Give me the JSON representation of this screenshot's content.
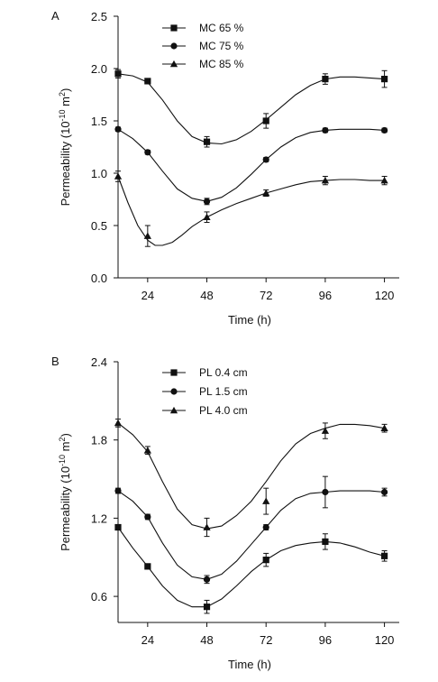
{
  "chart_data": [
    {
      "panel_label": "A",
      "type": "line",
      "xlabel": "Time (h)",
      "ylabel_parts": [
        "Permeability (10",
        "-10",
        " m",
        "2",
        ")"
      ],
      "xlim": [
        12,
        126
      ],
      "ylim": [
        0,
        2.5
      ],
      "x_ticks": [
        24,
        48,
        72,
        96,
        120
      ],
      "y_ticks": [
        0.0,
        0.5,
        1.0,
        1.5,
        2.0,
        2.5
      ],
      "y_tick_labels": [
        "0.0",
        "0.5",
        "1.0",
        "1.5",
        "2.0",
        "2.5"
      ],
      "legend_position": "top-center",
      "series": [
        {
          "name": "MC 65 %",
          "marker": "square",
          "x": [
            12,
            24,
            48,
            72,
            96,
            120
          ],
          "y": [
            1.95,
            1.88,
            1.3,
            1.5,
            1.9,
            1.9
          ],
          "err": [
            0.04,
            0.02,
            0.05,
            0.07,
            0.05,
            0.08
          ],
          "curve_x": [
            12,
            18,
            24,
            30,
            36,
            42,
            48,
            54,
            60,
            66,
            72,
            78,
            84,
            90,
            96,
            102,
            108,
            114,
            120
          ],
          "curve_y": [
            1.95,
            1.93,
            1.87,
            1.7,
            1.5,
            1.35,
            1.29,
            1.28,
            1.32,
            1.4,
            1.51,
            1.63,
            1.75,
            1.84,
            1.9,
            1.92,
            1.92,
            1.91,
            1.9
          ]
        },
        {
          "name": "MC 75 %",
          "marker": "circle",
          "x": [
            12,
            24,
            48,
            72,
            96,
            120
          ],
          "y": [
            1.42,
            1.2,
            0.73,
            1.13,
            1.41,
            1.41
          ],
          "err": [
            0.02,
            0.02,
            0.03,
            0.02,
            0.02,
            0.02
          ],
          "curve_x": [
            12,
            18,
            24,
            30,
            36,
            42,
            48,
            54,
            60,
            66,
            72,
            78,
            84,
            90,
            96,
            102,
            108,
            114,
            120
          ],
          "curve_y": [
            1.42,
            1.33,
            1.2,
            1.02,
            0.85,
            0.76,
            0.73,
            0.77,
            0.86,
            0.99,
            1.13,
            1.25,
            1.34,
            1.39,
            1.41,
            1.42,
            1.42,
            1.42,
            1.41
          ]
        },
        {
          "name": "MC 85 %",
          "marker": "triangle",
          "x": [
            12,
            24,
            48,
            72,
            96,
            120
          ],
          "y": [
            0.97,
            0.4,
            0.58,
            0.81,
            0.93,
            0.93
          ],
          "err": [
            0.05,
            0.1,
            0.05,
            0.03,
            0.04,
            0.04
          ],
          "curve_x": [
            12,
            16,
            20,
            24,
            27,
            30,
            34,
            38,
            42,
            48,
            54,
            60,
            66,
            72,
            78,
            84,
            90,
            96,
            102,
            108,
            114,
            120
          ],
          "curve_y": [
            0.97,
            0.72,
            0.5,
            0.36,
            0.31,
            0.31,
            0.34,
            0.41,
            0.49,
            0.58,
            0.65,
            0.71,
            0.76,
            0.81,
            0.85,
            0.89,
            0.92,
            0.93,
            0.94,
            0.94,
            0.93,
            0.93
          ]
        }
      ]
    },
    {
      "panel_label": "B",
      "type": "line",
      "xlabel": "Time (h)",
      "ylabel_parts": [
        "Permeability (10",
        "-10",
        " m",
        "2",
        ")"
      ],
      "xlim": [
        12,
        126
      ],
      "ylim": [
        0.4,
        2.4
      ],
      "x_ticks": [
        24,
        48,
        72,
        96,
        120
      ],
      "y_ticks": [
        0.6,
        1.2,
        1.8,
        2.4
      ],
      "y_tick_labels": [
        "0.6",
        "1.2",
        "1.8",
        "2.4"
      ],
      "legend_position": "top-center",
      "series": [
        {
          "name": "PL 0.4 cm",
          "marker": "square",
          "x": [
            12,
            24,
            48,
            72,
            96,
            120
          ],
          "y": [
            1.13,
            0.83,
            0.52,
            0.88,
            1.02,
            0.91
          ],
          "err": [
            0.02,
            0.02,
            0.05,
            0.05,
            0.06,
            0.04
          ],
          "curve_x": [
            12,
            18,
            24,
            30,
            36,
            42,
            48,
            54,
            60,
            66,
            72,
            78,
            84,
            90,
            96,
            102,
            108,
            114,
            120
          ],
          "curve_y": [
            1.13,
            0.97,
            0.83,
            0.68,
            0.57,
            0.52,
            0.52,
            0.58,
            0.68,
            0.79,
            0.88,
            0.95,
            0.99,
            1.01,
            1.02,
            1.01,
            0.98,
            0.94,
            0.91
          ]
        },
        {
          "name": "PL 1.5 cm",
          "marker": "circle",
          "x": [
            12,
            24,
            48,
            72,
            96,
            120
          ],
          "y": [
            1.41,
            1.21,
            0.73,
            1.13,
            1.4,
            1.4
          ],
          "err": [
            0.02,
            0.02,
            0.03,
            0.02,
            0.12,
            0.03
          ],
          "curve_x": [
            12,
            18,
            24,
            30,
            36,
            42,
            48,
            54,
            60,
            66,
            72,
            78,
            84,
            90,
            96,
            102,
            108,
            114,
            120
          ],
          "curve_y": [
            1.41,
            1.33,
            1.21,
            1.01,
            0.84,
            0.75,
            0.73,
            0.77,
            0.87,
            1.0,
            1.13,
            1.26,
            1.35,
            1.39,
            1.4,
            1.41,
            1.41,
            1.41,
            1.4
          ]
        },
        {
          "name": "PL 4.0 cm",
          "marker": "triangle",
          "x": [
            12,
            24,
            48,
            72,
            96,
            120
          ],
          "y": [
            1.93,
            1.72,
            1.13,
            1.33,
            1.87,
            1.89
          ],
          "err": [
            0.03,
            0.03,
            0.07,
            0.1,
            0.06,
            0.03
          ],
          "curve_x": [
            12,
            18,
            24,
            30,
            36,
            42,
            48,
            54,
            60,
            66,
            72,
            78,
            84,
            90,
            96,
            102,
            108,
            114,
            120
          ],
          "curve_y": [
            1.93,
            1.84,
            1.71,
            1.48,
            1.27,
            1.15,
            1.12,
            1.14,
            1.22,
            1.33,
            1.48,
            1.64,
            1.77,
            1.85,
            1.89,
            1.92,
            1.92,
            1.91,
            1.89
          ]
        }
      ]
    }
  ]
}
